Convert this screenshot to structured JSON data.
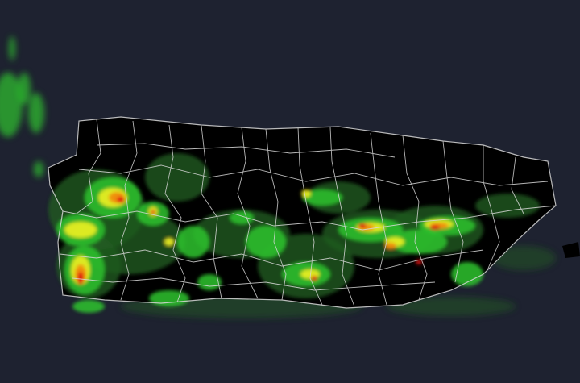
{
  "map": {
    "region": "Puerto Rico",
    "layer": "radar-reflectivity",
    "colors": {
      "background": "#1e2230",
      "land": "#000000",
      "borders": "#d8d8d8",
      "radar_light": "#1f5a1f",
      "radar_green": "#2fc42f",
      "radar_yellow": "#f0f020",
      "radar_orange": "#f08a10",
      "radar_red": "#e01010"
    }
  }
}
